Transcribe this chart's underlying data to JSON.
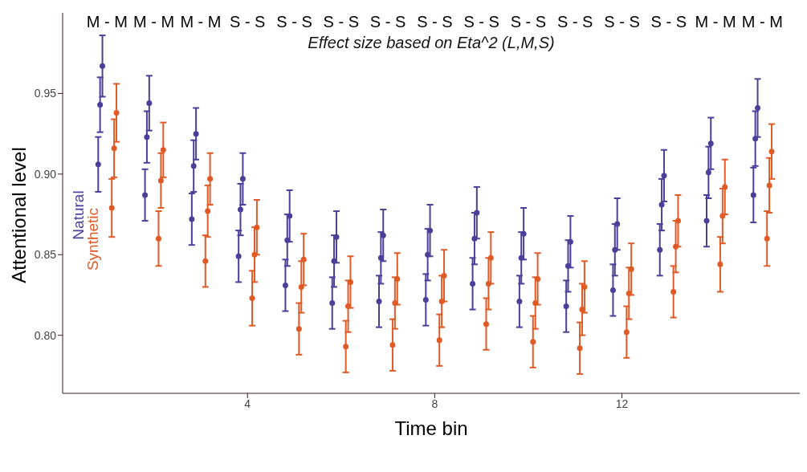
{
  "chart_data": {
    "type": "scatter",
    "title": "Effect size based on Eta^2 (L,M,S)",
    "xlabel": "Time bin",
    "ylabel": "Attentional level",
    "xlim": [
      0.05,
      15.8
    ],
    "xticks": [
      4,
      8,
      12
    ],
    "ylim": [
      0.764,
      1.0
    ],
    "yticks": [
      {
        "value": 0.8,
        "label": "0.80"
      },
      {
        "value": 0.85,
        "label": "0.85"
      },
      {
        "value": 0.9,
        "label": "0.90"
      },
      {
        "value": 0.95,
        "label": "0.95"
      }
    ],
    "grid": false,
    "marker": "circle",
    "series": [
      {
        "name": "Natural",
        "color": "#4a3f99",
        "x": [
          0.81,
          0.85,
          0.9,
          1.81,
          1.85,
          1.9,
          2.81,
          2.85,
          2.9,
          3.81,
          3.85,
          3.9,
          4.81,
          4.85,
          4.9,
          5.81,
          5.85,
          5.9,
          6.81,
          6.85,
          6.9,
          7.81,
          7.85,
          7.9,
          8.81,
          8.85,
          8.9,
          9.81,
          9.85,
          9.9,
          10.81,
          10.85,
          10.9,
          11.81,
          11.85,
          11.9,
          12.81,
          12.85,
          12.9,
          13.81,
          13.85,
          13.9,
          14.81,
          14.85,
          14.9
        ],
        "values": [
          0.906,
          0.943,
          0.967,
          0.887,
          0.923,
          0.944,
          0.872,
          0.905,
          0.925,
          0.849,
          0.878,
          0.897,
          0.831,
          0.859,
          0.874,
          0.82,
          0.846,
          0.861,
          0.821,
          0.848,
          0.862,
          0.822,
          0.85,
          0.865,
          0.832,
          0.86,
          0.876,
          0.821,
          0.848,
          0.863,
          0.818,
          0.843,
          0.858,
          0.828,
          0.853,
          0.869,
          0.853,
          0.881,
          0.899,
          0.871,
          0.901,
          0.919,
          0.887,
          0.922,
          0.941
        ],
        "errors": [
          0.017,
          0.017,
          0.019,
          0.016,
          0.016,
          0.017,
          0.016,
          0.016,
          0.016,
          0.016,
          0.016,
          0.016,
          0.016,
          0.016,
          0.016,
          0.016,
          0.016,
          0.016,
          0.016,
          0.016,
          0.016,
          0.016,
          0.016,
          0.016,
          0.016,
          0.016,
          0.016,
          0.016,
          0.016,
          0.016,
          0.016,
          0.016,
          0.016,
          0.016,
          0.016,
          0.016,
          0.016,
          0.016,
          0.016,
          0.016,
          0.016,
          0.016,
          0.017,
          0.017,
          0.018
        ]
      },
      {
        "name": "Synthetic",
        "color": "#e05a26",
        "x": [
          1.1,
          1.15,
          1.2,
          2.1,
          2.15,
          2.2,
          3.1,
          3.15,
          3.2,
          4.1,
          4.15,
          4.2,
          5.1,
          5.15,
          5.2,
          6.1,
          6.15,
          6.2,
          7.1,
          7.15,
          7.2,
          8.1,
          8.15,
          8.2,
          9.1,
          9.15,
          9.2,
          10.1,
          10.15,
          10.2,
          11.1,
          11.15,
          11.2,
          12.1,
          12.15,
          12.2,
          13.1,
          13.15,
          13.2,
          14.1,
          14.15,
          14.2,
          15.1,
          15.15,
          15.2
        ],
        "values": [
          0.879,
          0.916,
          0.938,
          0.86,
          0.896,
          0.915,
          0.846,
          0.877,
          0.897,
          0.823,
          0.85,
          0.867,
          0.804,
          0.83,
          0.847,
          0.793,
          0.818,
          0.833,
          0.794,
          0.82,
          0.835,
          0.797,
          0.821,
          0.837,
          0.807,
          0.832,
          0.848,
          0.796,
          0.82,
          0.835,
          0.792,
          0.816,
          0.83,
          0.802,
          0.826,
          0.841,
          0.827,
          0.855,
          0.871,
          0.844,
          0.874,
          0.892,
          0.86,
          0.893,
          0.914
        ],
        "errors": [
          0.018,
          0.018,
          0.018,
          0.017,
          0.017,
          0.017,
          0.016,
          0.016,
          0.016,
          0.017,
          0.017,
          0.017,
          0.016,
          0.016,
          0.016,
          0.016,
          0.016,
          0.016,
          0.016,
          0.016,
          0.016,
          0.016,
          0.016,
          0.016,
          0.016,
          0.016,
          0.016,
          0.016,
          0.016,
          0.016,
          0.016,
          0.016,
          0.016,
          0.016,
          0.016,
          0.016,
          0.016,
          0.016,
          0.016,
          0.017,
          0.017,
          0.017,
          0.017,
          0.017,
          0.017
        ]
      }
    ],
    "annotations": [
      "M - M",
      "M - M",
      "M - M",
      "S - S",
      "S - S",
      "S - S",
      "S - S",
      "S - S",
      "S - S",
      "S - S",
      "S - S",
      "S - S",
      "S - S",
      "M - M",
      "M - M"
    ]
  }
}
